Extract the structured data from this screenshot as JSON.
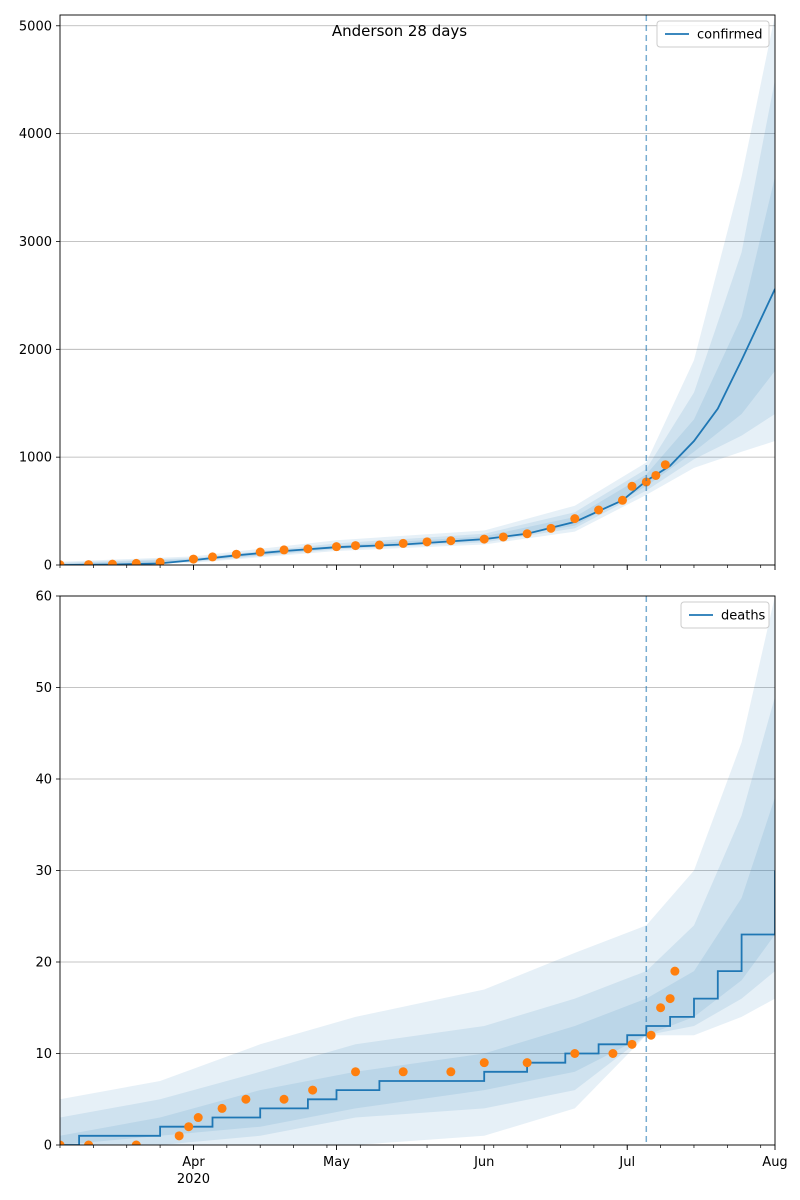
{
  "chart_data": [
    {
      "type": "line",
      "title": "Anderson 28 days",
      "legend": [
        "confirmed"
      ],
      "legend_placement": "top-right",
      "grid": "y",
      "xlim": [
        "2020-03-04",
        "2020-08-01"
      ],
      "ylim": [
        0,
        5100
      ],
      "yticks": [
        0,
        1000,
        2000,
        3000,
        4000,
        5000
      ],
      "xticks": [
        {
          "date": "2020-04-01",
          "label": "Apr",
          "sublabel": "2020"
        },
        {
          "date": "2020-05-01",
          "label": "May",
          "sublabel": ""
        },
        {
          "date": "2020-06-01",
          "label": "Jun",
          "sublabel": ""
        },
        {
          "date": "2020-07-01",
          "label": "Jul",
          "sublabel": ""
        },
        {
          "date": "2020-08-01",
          "label": "Aug",
          "sublabel": ""
        }
      ],
      "vline_date": "2020-07-05",
      "series": [
        {
          "name": "confirmed",
          "color": "#1f77b4",
          "dates": [
            "2020-03-04",
            "2020-03-15",
            "2020-03-25",
            "2020-04-01",
            "2020-04-10",
            "2020-04-20",
            "2020-05-01",
            "2020-05-15",
            "2020-06-01",
            "2020-06-10",
            "2020-06-20",
            "2020-06-30",
            "2020-07-05",
            "2020-07-10",
            "2020-07-15",
            "2020-07-20",
            "2020-07-25",
            "2020-08-01"
          ],
          "values": [
            0,
            5,
            15,
            45,
            90,
            130,
            165,
            190,
            240,
            290,
            400,
            600,
            780,
            920,
            1150,
            1450,
            1900,
            2560
          ]
        }
      ],
      "observed": {
        "color": "#ff7f0e",
        "dates": [
          "2020-03-04",
          "2020-03-10",
          "2020-03-15",
          "2020-03-20",
          "2020-03-25",
          "2020-04-01",
          "2020-04-05",
          "2020-04-10",
          "2020-04-15",
          "2020-04-20",
          "2020-04-25",
          "2020-05-01",
          "2020-05-05",
          "2020-05-10",
          "2020-05-15",
          "2020-05-20",
          "2020-05-25",
          "2020-06-01",
          "2020-06-05",
          "2020-06-10",
          "2020-06-15",
          "2020-06-20",
          "2020-06-25",
          "2020-06-30",
          "2020-07-02",
          "2020-07-05",
          "2020-07-07",
          "2020-07-09"
        ],
        "values": [
          2,
          4,
          8,
          15,
          25,
          55,
          75,
          100,
          120,
          140,
          150,
          170,
          180,
          185,
          200,
          215,
          225,
          240,
          260,
          290,
          340,
          430,
          510,
          600,
          730,
          770,
          830,
          930
        ]
      },
      "bands": [
        {
          "dates": [
            "2020-03-04",
            "2020-04-01",
            "2020-05-01",
            "2020-06-01",
            "2020-06-20",
            "2020-07-05",
            "2020-07-15",
            "2020-07-25",
            "2020-08-01"
          ],
          "lower": [
            0,
            20,
            130,
            190,
            310,
            650,
            900,
            1050,
            1150
          ],
          "upper": [
            30,
            80,
            230,
            320,
            550,
            950,
            1900,
            3600,
            5100
          ]
        },
        {
          "dates": [
            "2020-03-04",
            "2020-04-01",
            "2020-05-01",
            "2020-06-01",
            "2020-06-20",
            "2020-07-05",
            "2020-07-15",
            "2020-07-25",
            "2020-08-01"
          ],
          "lower": [
            0,
            30,
            145,
            210,
            340,
            690,
            980,
            1200,
            1400
          ],
          "upper": [
            20,
            65,
            200,
            290,
            490,
            890,
            1600,
            2900,
            4500
          ]
        },
        {
          "dates": [
            "2020-03-04",
            "2020-04-01",
            "2020-05-01",
            "2020-06-01",
            "2020-06-20",
            "2020-07-05",
            "2020-07-15",
            "2020-07-25",
            "2020-08-01"
          ],
          "lower": [
            0,
            38,
            155,
            225,
            365,
            730,
            1050,
            1400,
            1800
          ],
          "upper": [
            12,
            55,
            180,
            265,
            445,
            840,
            1350,
            2300,
            3600
          ]
        }
      ]
    },
    {
      "type": "line",
      "title": "",
      "legend": [
        "deaths"
      ],
      "legend_placement": "top-right",
      "grid": "y",
      "xlim": [
        "2020-03-04",
        "2020-08-01"
      ],
      "ylim": [
        0,
        60
      ],
      "yticks": [
        0,
        10,
        20,
        30,
        40,
        50,
        60
      ],
      "xticks": [
        {
          "date": "2020-04-01",
          "label": "Apr",
          "sublabel": "2020"
        },
        {
          "date": "2020-05-01",
          "label": "May",
          "sublabel": ""
        },
        {
          "date": "2020-06-01",
          "label": "Jun",
          "sublabel": ""
        },
        {
          "date": "2020-07-01",
          "label": "Jul",
          "sublabel": ""
        },
        {
          "date": "2020-08-01",
          "label": "Aug",
          "sublabel": ""
        }
      ],
      "vline_date": "2020-07-05",
      "series": [
        {
          "name": "deaths",
          "color": "#1f77b4",
          "step": true,
          "dates": [
            "2020-03-04",
            "2020-03-08",
            "2020-03-25",
            "2020-04-05",
            "2020-04-15",
            "2020-04-25",
            "2020-05-01",
            "2020-05-10",
            "2020-06-01",
            "2020-06-10",
            "2020-06-18",
            "2020-06-25",
            "2020-07-01",
            "2020-07-05",
            "2020-07-10",
            "2020-07-15",
            "2020-07-20",
            "2020-07-25",
            "2020-08-01"
          ],
          "values": [
            0,
            1,
            2,
            3,
            4,
            5,
            6,
            7,
            8,
            9,
            10,
            11,
            12,
            13,
            14,
            16,
            19,
            23,
            30
          ]
        }
      ],
      "observed": {
        "color": "#ff7f0e",
        "dates": [
          "2020-03-04",
          "2020-03-10",
          "2020-03-20",
          "2020-03-29",
          "2020-03-31",
          "2020-04-02",
          "2020-04-07",
          "2020-04-12",
          "2020-04-20",
          "2020-04-26",
          "2020-05-05",
          "2020-05-15",
          "2020-05-25",
          "2020-06-01",
          "2020-06-10",
          "2020-06-20",
          "2020-06-28",
          "2020-07-02",
          "2020-07-06",
          "2020-07-08",
          "2020-07-10",
          "2020-07-11"
        ],
        "values": [
          0,
          0,
          0,
          1,
          2,
          3,
          4,
          5,
          5,
          6,
          8,
          8,
          8,
          9,
          9,
          10,
          10,
          11,
          12,
          15,
          16,
          19
        ]
      },
      "bands": [
        {
          "dates": [
            "2020-03-04",
            "2020-03-25",
            "2020-04-15",
            "2020-05-05",
            "2020-06-01",
            "2020-06-20",
            "2020-07-05",
            "2020-07-15",
            "2020-07-25",
            "2020-08-01"
          ],
          "lower": [
            0,
            0,
            0,
            0,
            1,
            4,
            12,
            12,
            14,
            16
          ],
          "upper": [
            5,
            7,
            11,
            14,
            17,
            21,
            24,
            30,
            44,
            60
          ]
        },
        {
          "dates": [
            "2020-03-04",
            "2020-03-25",
            "2020-04-15",
            "2020-05-05",
            "2020-06-01",
            "2020-06-20",
            "2020-07-05",
            "2020-07-15",
            "2020-07-25",
            "2020-08-01"
          ],
          "lower": [
            0,
            0,
            1,
            3,
            4,
            6,
            12,
            13,
            16,
            19
          ],
          "upper": [
            3,
            5,
            8,
            11,
            13,
            16,
            19,
            24,
            36,
            49
          ]
        },
        {
          "dates": [
            "2020-03-04",
            "2020-03-25",
            "2020-04-15",
            "2020-05-05",
            "2020-06-01",
            "2020-06-20",
            "2020-07-05",
            "2020-07-15",
            "2020-07-25",
            "2020-08-01"
          ],
          "lower": [
            0,
            1,
            2,
            4,
            6,
            8,
            12,
            14,
            18,
            23
          ],
          "upper": [
            1,
            3,
            6,
            8,
            10,
            13,
            16,
            19,
            27,
            38
          ]
        }
      ]
    }
  ]
}
